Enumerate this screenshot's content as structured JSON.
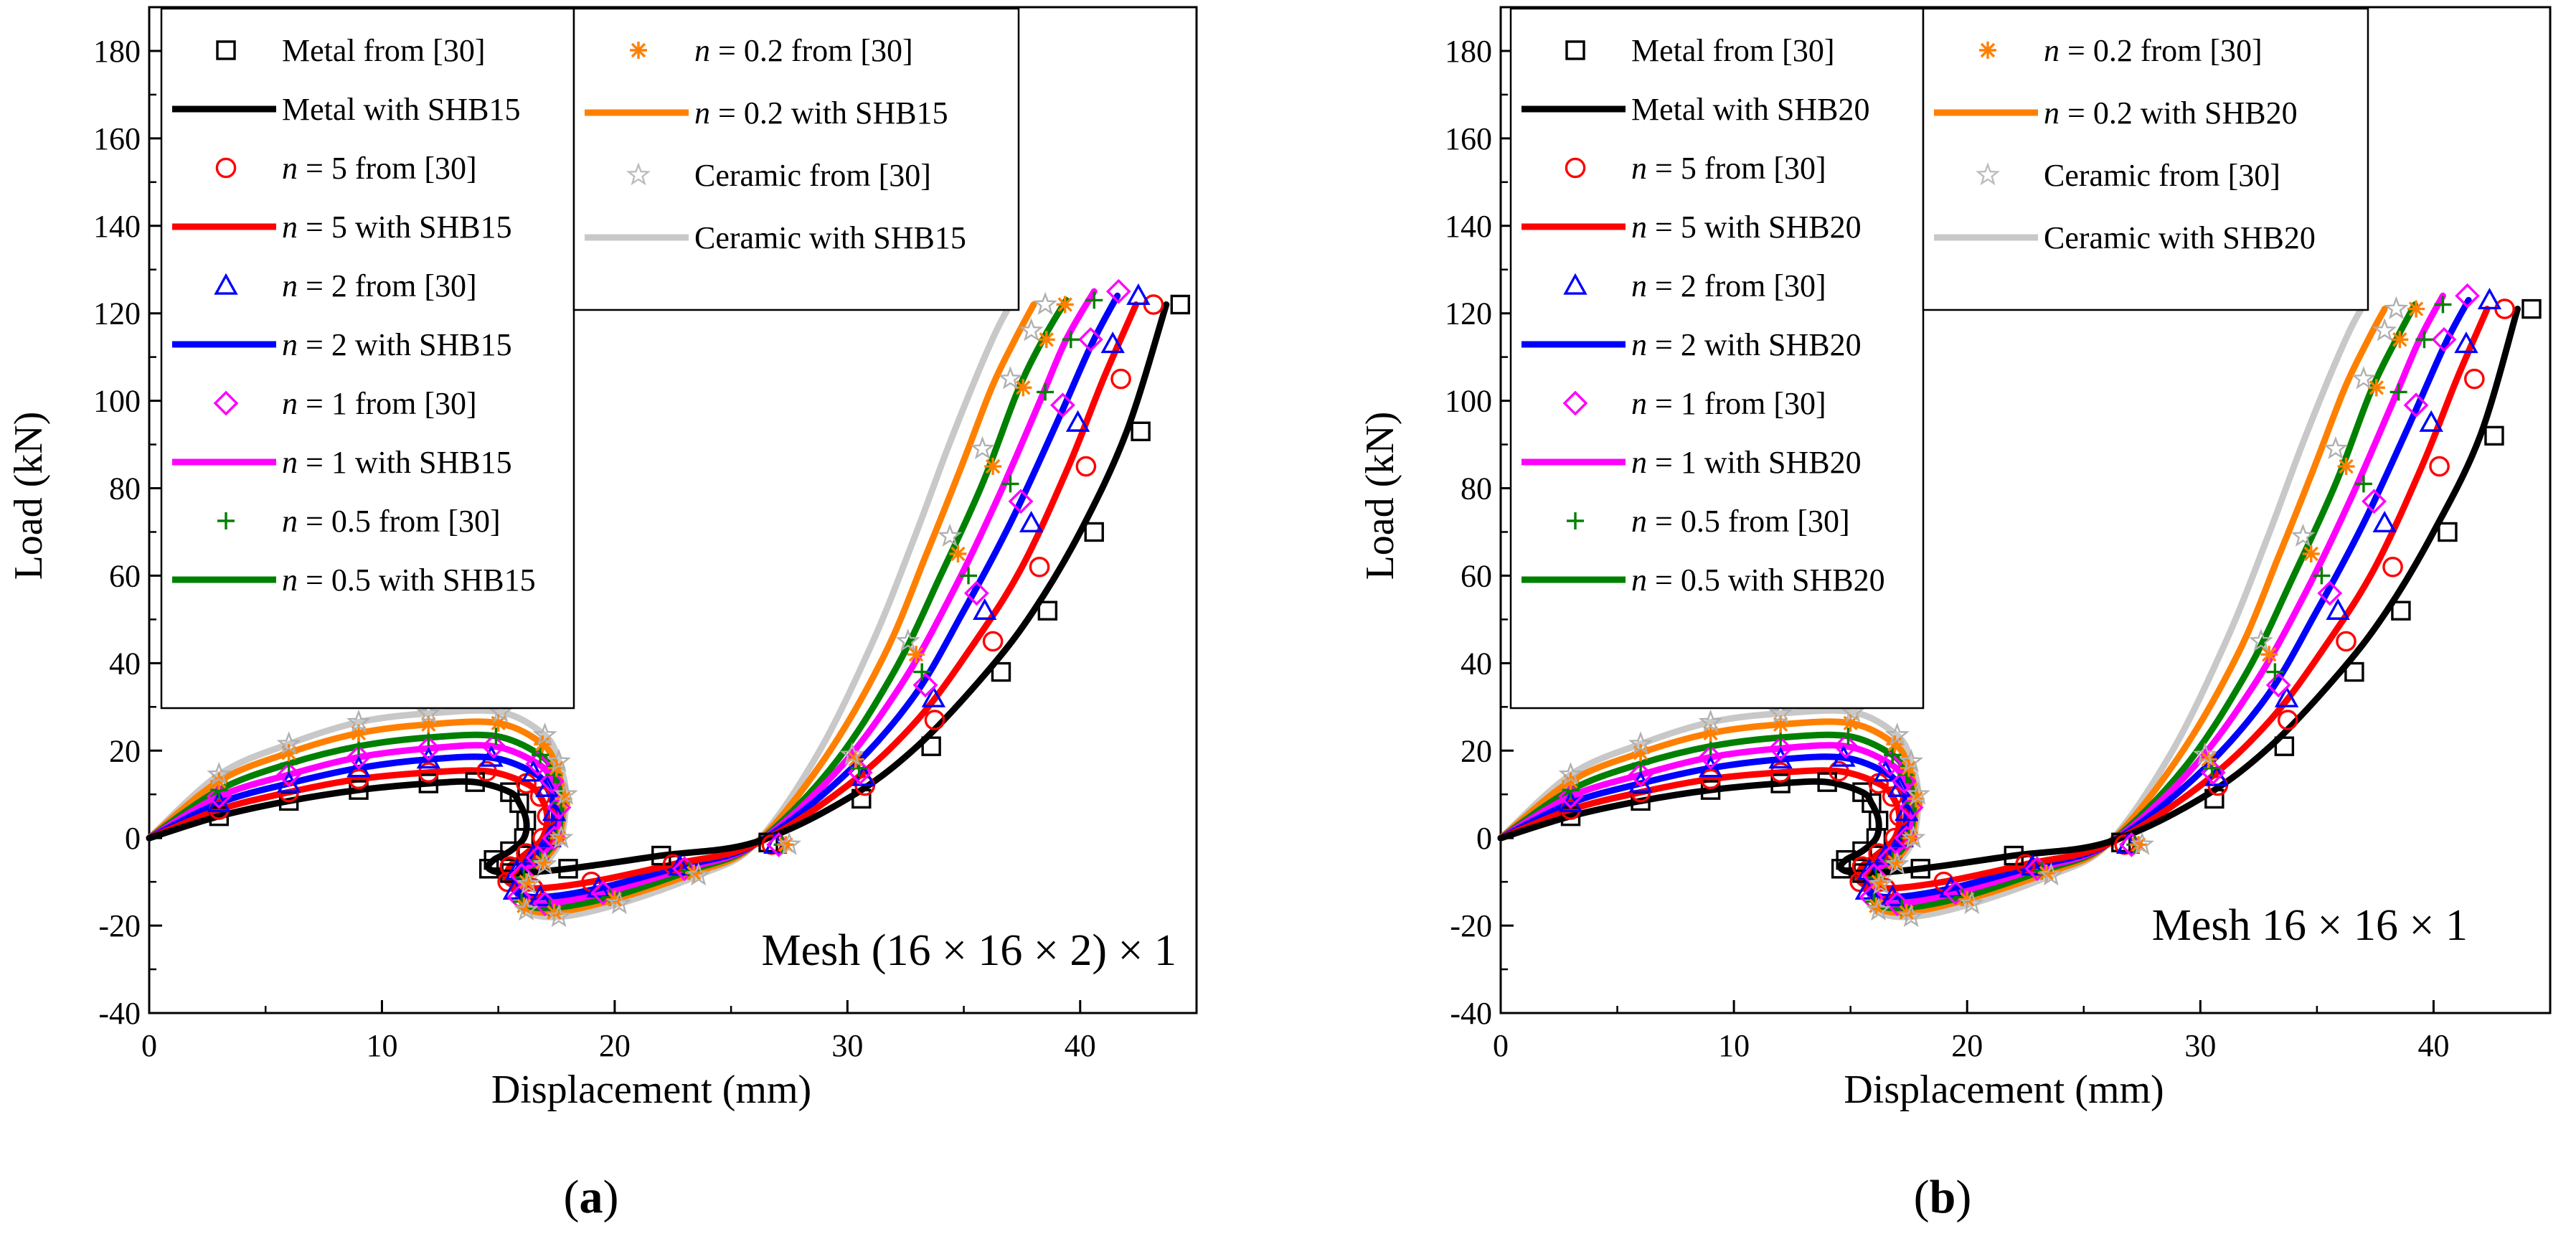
{
  "panels": [
    {
      "panel_label": "a",
      "mesh_label": "Mesh (16 × 16 × 2) × 1",
      "legend_left": [
        {
          "label": "Metal from [30]",
          "kind": "marker",
          "color": "#000000",
          "marker": "square"
        },
        {
          "label": "Metal with SHB15",
          "kind": "line",
          "color": "#000000"
        },
        {
          "label": "= 5  from [30]",
          "var": "n",
          "kind": "marker",
          "color": "#ff0000",
          "marker": "circle"
        },
        {
          "label": "= 5 with SHB15",
          "var": "n",
          "kind": "line",
          "color": "#ff0000"
        },
        {
          "label": "= 2  from [30]",
          "var": "n",
          "kind": "marker",
          "color": "#0000ff",
          "marker": "triangle"
        },
        {
          "label": "= 2 with SHB15",
          "var": "n",
          "kind": "line",
          "color": "#0000ff"
        },
        {
          "label": "= 1  from [30]",
          "var": "n",
          "kind": "marker",
          "color": "#ff00ff",
          "marker": "diamond"
        },
        {
          "label": "= 1 with SHB15",
          "var": "n",
          "kind": "line",
          "color": "#ff00ff"
        },
        {
          "label": "= 0.5  from [30]",
          "var": "n",
          "kind": "marker",
          "color": "#008000",
          "marker": "plus"
        },
        {
          "label": "= 0.5 with SHB15",
          "var": "n",
          "kind": "line",
          "color": "#008000"
        }
      ],
      "legend_right": [
        {
          "label": "= 0.2 from [30]",
          "var": "n",
          "kind": "marker",
          "color": "#ff8000",
          "marker": "asterisk"
        },
        {
          "label": "= 0.2 with SHB15",
          "var": "n",
          "kind": "line",
          "color": "#ff8000"
        },
        {
          "label": "Ceramic from [30]",
          "kind": "marker",
          "color": "#bdbdbd",
          "marker": "star"
        },
        {
          "label": "Ceramic with SHB15",
          "kind": "line",
          "color": "#c8c8c8"
        }
      ]
    },
    {
      "panel_label": "b",
      "mesh_label": "Mesh 16 × 16 × 1",
      "legend_left": [
        {
          "label": "Metal from [30]",
          "kind": "marker",
          "color": "#000000",
          "marker": "square"
        },
        {
          "label": "Metal with SHB20",
          "kind": "line",
          "color": "#000000"
        },
        {
          "label": "= 5 from [30]",
          "var": "n",
          "kind": "marker",
          "color": "#ff0000",
          "marker": "circle"
        },
        {
          "label": "= 5 with SHB20",
          "var": "n",
          "kind": "line",
          "color": "#ff0000"
        },
        {
          "label": "= 2 from [30]",
          "var": "n",
          "kind": "marker",
          "color": "#0000ff",
          "marker": "triangle"
        },
        {
          "label": "= 2 with SHB20",
          "var": "n",
          "kind": "line",
          "color": "#0000ff"
        },
        {
          "label": "= 1 from [30]",
          "var": "n",
          "kind": "marker",
          "color": "#ff00ff",
          "marker": "diamond"
        },
        {
          "label": "= 1 with SHB20",
          "var": "n",
          "kind": "line",
          "color": "#ff00ff"
        },
        {
          "label": "= 0.5 from [30]",
          "var": "n",
          "kind": "marker",
          "color": "#008000",
          "marker": "plus"
        },
        {
          "label": "= 0.5 with SHB20",
          "var": "n",
          "kind": "line",
          "color": "#008000"
        }
      ],
      "legend_right": [
        {
          "label": "= 0.2 from [30]",
          "var": "n",
          "kind": "marker",
          "color": "#ff8000",
          "marker": "asterisk"
        },
        {
          "label": "= 0.2 with SHB20",
          "var": "n",
          "kind": "line",
          "color": "#ff8000"
        },
        {
          "label": "Ceramic from [30]",
          "kind": "marker",
          "color": "#bdbdbd",
          "marker": "star"
        },
        {
          "label": "Ceramic with SHB20",
          "kind": "line",
          "color": "#c8c8c8"
        }
      ]
    }
  ],
  "chart_data": [
    {
      "type": "line",
      "panel": "a",
      "title": "",
      "xlabel": "Displacement (mm)",
      "ylabel": "Load (kN)",
      "xlim": [
        0,
        45
      ],
      "ylim": [
        -40,
        190
      ],
      "xticks": [
        0,
        10,
        20,
        30,
        40
      ],
      "yticks": [
        -40,
        -20,
        0,
        20,
        40,
        60,
        80,
        100,
        120,
        140,
        160,
        180
      ],
      "annotation": "Mesh (16 × 16 × 2) × 1",
      "series": [
        {
          "name": "Metal",
          "color": "#000000",
          "marker": "square",
          "scale": 1.0,
          "x": [
            0,
            3,
            6,
            9,
            12,
            14,
            15.5,
            15.9,
            16.2,
            16.1,
            15.5,
            14.8,
            14.6,
            15.5,
            18,
            22,
            26,
            30,
            33,
            36,
            38,
            40,
            42,
            43.7
          ],
          "y": [
            0,
            5,
            8.5,
            11,
            12.5,
            12.8,
            10.5,
            8,
            4,
            0,
            -3,
            -5,
            -7,
            -8,
            -7,
            -4,
            -1,
            9,
            21,
            38,
            52,
            70,
            93,
            122
          ]
        },
        {
          "name": "n = 5",
          "color": "#ff0000",
          "marker": "circle",
          "scale": 1.2,
          "x": [
            0,
            3,
            6,
            9,
            12,
            14.5,
            16.2,
            16.8,
            17.1,
            16.9,
            16.2,
            15.5,
            15.4,
            16.5,
            19,
            22.5,
            26,
            30,
            33,
            35.5,
            37.5,
            39.5,
            41,
            42.4
          ],
          "y": [
            0,
            6.5,
            10.5,
            13.5,
            15,
            15.3,
            12.5,
            9.5,
            5,
            0,
            -3.5,
            -6.5,
            -10,
            -11.5,
            -10,
            -6,
            -1.5,
            12,
            27,
            45,
            62,
            85,
            105,
            122
          ]
        },
        {
          "name": "n = 2",
          "color": "#0000ff",
          "marker": "triangle",
          "scale": 1.5,
          "x": [
            0,
            3,
            6,
            9,
            12,
            14.7,
            16.5,
            17.1,
            17.4,
            17.2,
            16.5,
            15.8,
            15.7,
            16.8,
            19.3,
            22.8,
            26,
            29.8,
            32.8,
            35,
            37,
            39,
            40.5,
            41.6
          ],
          "y": [
            0,
            8,
            12.5,
            16,
            18,
            18.4,
            15,
            11.5,
            6,
            0,
            -4,
            -7.5,
            -12,
            -13.5,
            -11.5,
            -6.5,
            -1.5,
            14,
            32,
            52,
            72,
            95,
            113,
            124
          ]
        },
        {
          "name": "n = 1",
          "color": "#ff00ff",
          "marker": "diamond",
          "scale": 1.9,
          "x": [
            0,
            3,
            6,
            9,
            12,
            14.8,
            16.7,
            17.3,
            17.6,
            17.4,
            16.7,
            16,
            15.9,
            17,
            19.5,
            23,
            26,
            29.5,
            32.3,
            34.5,
            36.4,
            38.2,
            39.4,
            40.6
          ],
          "y": [
            0,
            9.5,
            14.5,
            18.5,
            20.5,
            21,
            17,
            13,
            7,
            0,
            -4.5,
            -8.5,
            -13.5,
            -15,
            -12.5,
            -7,
            -1.5,
            15,
            35,
            56,
            77,
            99,
            114,
            125
          ]
        },
        {
          "name": "n = 0.5",
          "color": "#008000",
          "marker": "plus",
          "scale": 2.3,
          "x": [
            0,
            3,
            6,
            9,
            12,
            14.9,
            16.8,
            17.4,
            17.7,
            17.5,
            16.8,
            16.1,
            16,
            17.2,
            19.8,
            23.2,
            26,
            29.3,
            32,
            34,
            35.8,
            37.3,
            38.4,
            39.4
          ],
          "y": [
            0,
            11,
            17,
            21,
            23,
            23.3,
            19,
            14.5,
            8,
            0,
            -5,
            -9,
            -14.5,
            -16,
            -13.5,
            -7.5,
            -1.5,
            16,
            38,
            60,
            81,
            102,
            114,
            123
          ]
        },
        {
          "name": "n = 0.2",
          "color": "#ff8000",
          "marker": "asterisk",
          "scale": 2.8,
          "x": [
            0,
            3,
            6,
            9,
            12,
            15,
            16.9,
            17.5,
            17.8,
            17.6,
            16.9,
            16.2,
            16.1,
            17.4,
            20,
            23.4,
            26,
            29,
            31.6,
            33.4,
            34.9,
            36.2,
            37.2,
            38
          ],
          "y": [
            0,
            13,
            19.5,
            24,
            26,
            26.3,
            21.5,
            16,
            9,
            0,
            -5.5,
            -10,
            -15.5,
            -17,
            -14,
            -8,
            -1.5,
            18,
            42,
            65,
            85,
            103,
            114,
            122
          ]
        },
        {
          "name": "Ceramic",
          "color": "#c8c8c8",
          "marker": "star",
          "scale": 3.2,
          "x": [
            0,
            3,
            6,
            9,
            12,
            15.1,
            17,
            17.6,
            17.9,
            17.7,
            17,
            16.3,
            16.2,
            17.6,
            20.2,
            23.6,
            26,
            28.7,
            31.1,
            32.9,
            34.3,
            35.5,
            36.4,
            37
          ],
          "y": [
            0,
            14.5,
            21.5,
            26.5,
            28.5,
            28.8,
            23.5,
            17.5,
            10,
            0,
            -6,
            -10.5,
            -16.5,
            -18,
            -15,
            -8.5,
            -1.5,
            19,
            45,
            69,
            89,
            105,
            116,
            122
          ]
        }
      ]
    },
    {
      "type": "line",
      "panel": "b",
      "title": "",
      "xlabel": "Displacement (mm)",
      "ylabel": "Load (kN)",
      "xlim": [
        0,
        45
      ],
      "ylim": [
        -40,
        190
      ],
      "xticks": [
        0,
        10,
        20,
        30,
        40
      ],
      "yticks": [
        -40,
        -20,
        0,
        20,
        40,
        60,
        80,
        100,
        120,
        140,
        160,
        180
      ],
      "annotation": "Mesh 16 × 16 × 1",
      "series": [
        {
          "name": "Metal",
          "color": "#000000",
          "marker": "square",
          "scale": 1.0,
          "x": [
            0,
            3,
            6,
            9,
            12,
            14,
            15.5,
            15.9,
            16.2,
            16.1,
            15.5,
            14.8,
            14.6,
            15.5,
            18,
            22,
            26,
            30,
            33,
            36,
            38,
            40,
            42,
            43.6
          ],
          "y": [
            0,
            5,
            8.5,
            11,
            12.5,
            12.8,
            10.5,
            8,
            4,
            0,
            -3,
            -5,
            -7,
            -8,
            -7,
            -4,
            -1,
            9,
            21,
            38,
            52,
            70,
            92,
            121
          ]
        },
        {
          "name": "n = 5",
          "color": "#ff0000",
          "marker": "circle",
          "scale": 1.2,
          "x": [
            0,
            3,
            6,
            9,
            12,
            14.5,
            16.2,
            16.8,
            17.1,
            16.9,
            16.2,
            15.5,
            15.4,
            16.5,
            19,
            22.5,
            26,
            30,
            33,
            35.5,
            37.5,
            39.5,
            41,
            42.3
          ],
          "y": [
            0,
            6.5,
            10.5,
            13.5,
            15,
            15.3,
            12.5,
            9.5,
            5,
            0,
            -3.5,
            -6.5,
            -10,
            -11.5,
            -10,
            -6,
            -1.5,
            12,
            27,
            45,
            62,
            85,
            105,
            121
          ]
        },
        {
          "name": "n = 2",
          "color": "#0000ff",
          "marker": "triangle",
          "scale": 1.5,
          "x": [
            0,
            3,
            6,
            9,
            12,
            14.7,
            16.5,
            17.1,
            17.4,
            17.2,
            16.5,
            15.8,
            15.7,
            16.8,
            19.3,
            22.8,
            26,
            29.8,
            32.8,
            35,
            37,
            39,
            40.5,
            41.5
          ],
          "y": [
            0,
            8,
            12.5,
            16,
            18,
            18.4,
            15,
            11.5,
            6,
            0,
            -4,
            -7.5,
            -12,
            -13.5,
            -11.5,
            -6.5,
            -1.5,
            14,
            32,
            52,
            72,
            95,
            113,
            123
          ]
        },
        {
          "name": "n = 1",
          "color": "#ff00ff",
          "marker": "diamond",
          "scale": 1.9,
          "x": [
            0,
            3,
            6,
            9,
            12,
            14.8,
            16.7,
            17.3,
            17.6,
            17.4,
            16.7,
            16,
            15.9,
            17,
            19.5,
            23,
            26,
            29.5,
            32.3,
            34.5,
            36.4,
            38.2,
            39.4,
            40.4
          ],
          "y": [
            0,
            9.5,
            14.5,
            18.5,
            20.5,
            21,
            17,
            13,
            7,
            0,
            -4.5,
            -8.5,
            -13.5,
            -15,
            -12.5,
            -7,
            -1.5,
            15,
            35,
            56,
            77,
            99,
            114,
            124
          ]
        },
        {
          "name": "n = 0.5",
          "color": "#008000",
          "marker": "plus",
          "scale": 2.3,
          "x": [
            0,
            3,
            6,
            9,
            12,
            14.9,
            16.8,
            17.4,
            17.7,
            17.5,
            16.8,
            16.1,
            16,
            17.2,
            19.8,
            23.2,
            26,
            29.3,
            32,
            34,
            35.8,
            37.3,
            38.4,
            39.2
          ],
          "y": [
            0,
            11,
            17,
            21,
            23,
            23.3,
            19,
            14.5,
            8,
            0,
            -5,
            -9,
            -14.5,
            -16,
            -13.5,
            -7.5,
            -1.5,
            16,
            38,
            60,
            81,
            102,
            114,
            122
          ]
        },
        {
          "name": "n = 0.2",
          "color": "#ff8000",
          "marker": "asterisk",
          "scale": 2.8,
          "x": [
            0,
            3,
            6,
            9,
            12,
            15,
            16.9,
            17.5,
            17.8,
            17.6,
            16.9,
            16.2,
            16.1,
            17.4,
            20,
            23.4,
            26,
            29,
            31.6,
            33.4,
            34.9,
            36.2,
            37.2,
            37.9
          ],
          "y": [
            0,
            13,
            19.5,
            24,
            26,
            26.3,
            21.5,
            16,
            9,
            0,
            -5.5,
            -10,
            -15.5,
            -17,
            -14,
            -8,
            -1.5,
            18,
            42,
            65,
            85,
            103,
            114,
            121
          ]
        },
        {
          "name": "Ceramic",
          "color": "#c8c8c8",
          "marker": "star",
          "scale": 3.2,
          "x": [
            0,
            3,
            6,
            9,
            12,
            15.1,
            17,
            17.6,
            17.9,
            17.7,
            17,
            16.3,
            16.2,
            17.6,
            20.2,
            23.6,
            26,
            28.7,
            31.1,
            32.9,
            34.3,
            35.5,
            36.4,
            36.9
          ],
          "y": [
            0,
            14.5,
            21.5,
            26.5,
            28.5,
            28.8,
            23.5,
            17.5,
            10,
            0,
            -6,
            -10.5,
            -16.5,
            -18,
            -15,
            -8.5,
            -1.5,
            19,
            45,
            69,
            89,
            105,
            116,
            121
          ]
        }
      ]
    }
  ]
}
